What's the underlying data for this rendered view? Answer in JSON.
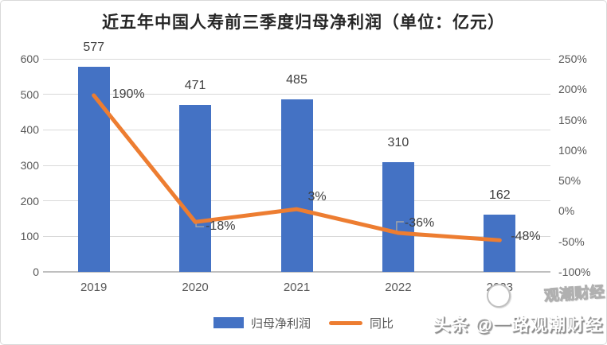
{
  "title": "近五年中国人寿前三季度归母净利润（单位：亿元）",
  "chart_data": {
    "type": "bar",
    "subtype": "combo-bar-line",
    "title": "近五年中国人寿前三季度归母净利润（单位：亿元）",
    "categories": [
      "2019",
      "2020",
      "2021",
      "2022",
      "2023"
    ],
    "series": [
      {
        "name": "归母净利润",
        "chart": "bar",
        "axis": "left",
        "values": [
          577,
          471,
          485,
          310,
          162
        ],
        "labels": [
          "577",
          "471",
          "485",
          "310",
          "162"
        ],
        "color": "#4472C4"
      },
      {
        "name": "同比",
        "chart": "line",
        "axis": "right",
        "values": [
          190,
          -18,
          3,
          -36,
          -48
        ],
        "labels": [
          "190%",
          "-18%",
          "3%",
          "-36%",
          "-48%"
        ],
        "color": "#ED7D31"
      }
    ],
    "left_axis": {
      "min": 0,
      "max": 600,
      "ticks": [
        0,
        100,
        200,
        300,
        400,
        500,
        600
      ],
      "suffix": ""
    },
    "right_axis": {
      "min": -100,
      "max": 250,
      "ticks": [
        -100,
        -50,
        0,
        50,
        100,
        150,
        200,
        250
      ],
      "suffix": "%"
    },
    "grid": true,
    "legend_position": "bottom"
  },
  "legend": {
    "items": [
      {
        "label": "归母净利润"
      },
      {
        "label": "同比"
      }
    ]
  },
  "watermark": {
    "small": "观潮财经",
    "main": "头条 @一路观潮财经"
  },
  "colors": {
    "bar": "#4472C4",
    "line": "#ED7D31",
    "grid": "#D9D9D9",
    "axis_line": "#BFBFBF",
    "tick_text": "#595959",
    "label_text": "#404040",
    "title_text": "#262626",
    "leader": "#A6A6A6",
    "border": "#D9D9D9",
    "watermark_shadow": "#8C8C8C"
  }
}
